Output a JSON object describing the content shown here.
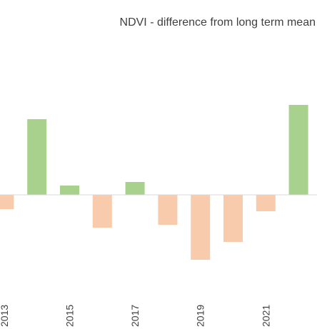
{
  "chart_data": {
    "type": "bar",
    "title": "NDVI - difference from long term mean",
    "categories": [
      "2013",
      null,
      "2015",
      null,
      "2017",
      null,
      "2019",
      null,
      "2021",
      null
    ],
    "values": [
      -0.02,
      0.106,
      0.013,
      -0.046,
      0.018,
      -0.042,
      -0.091,
      -0.066,
      -0.023,
      0.126
    ],
    "positive_color": "#a9d18e",
    "negative_color": "#f8cbad",
    "ylim": [
      -0.147,
      0.173
    ],
    "grid": false
  }
}
